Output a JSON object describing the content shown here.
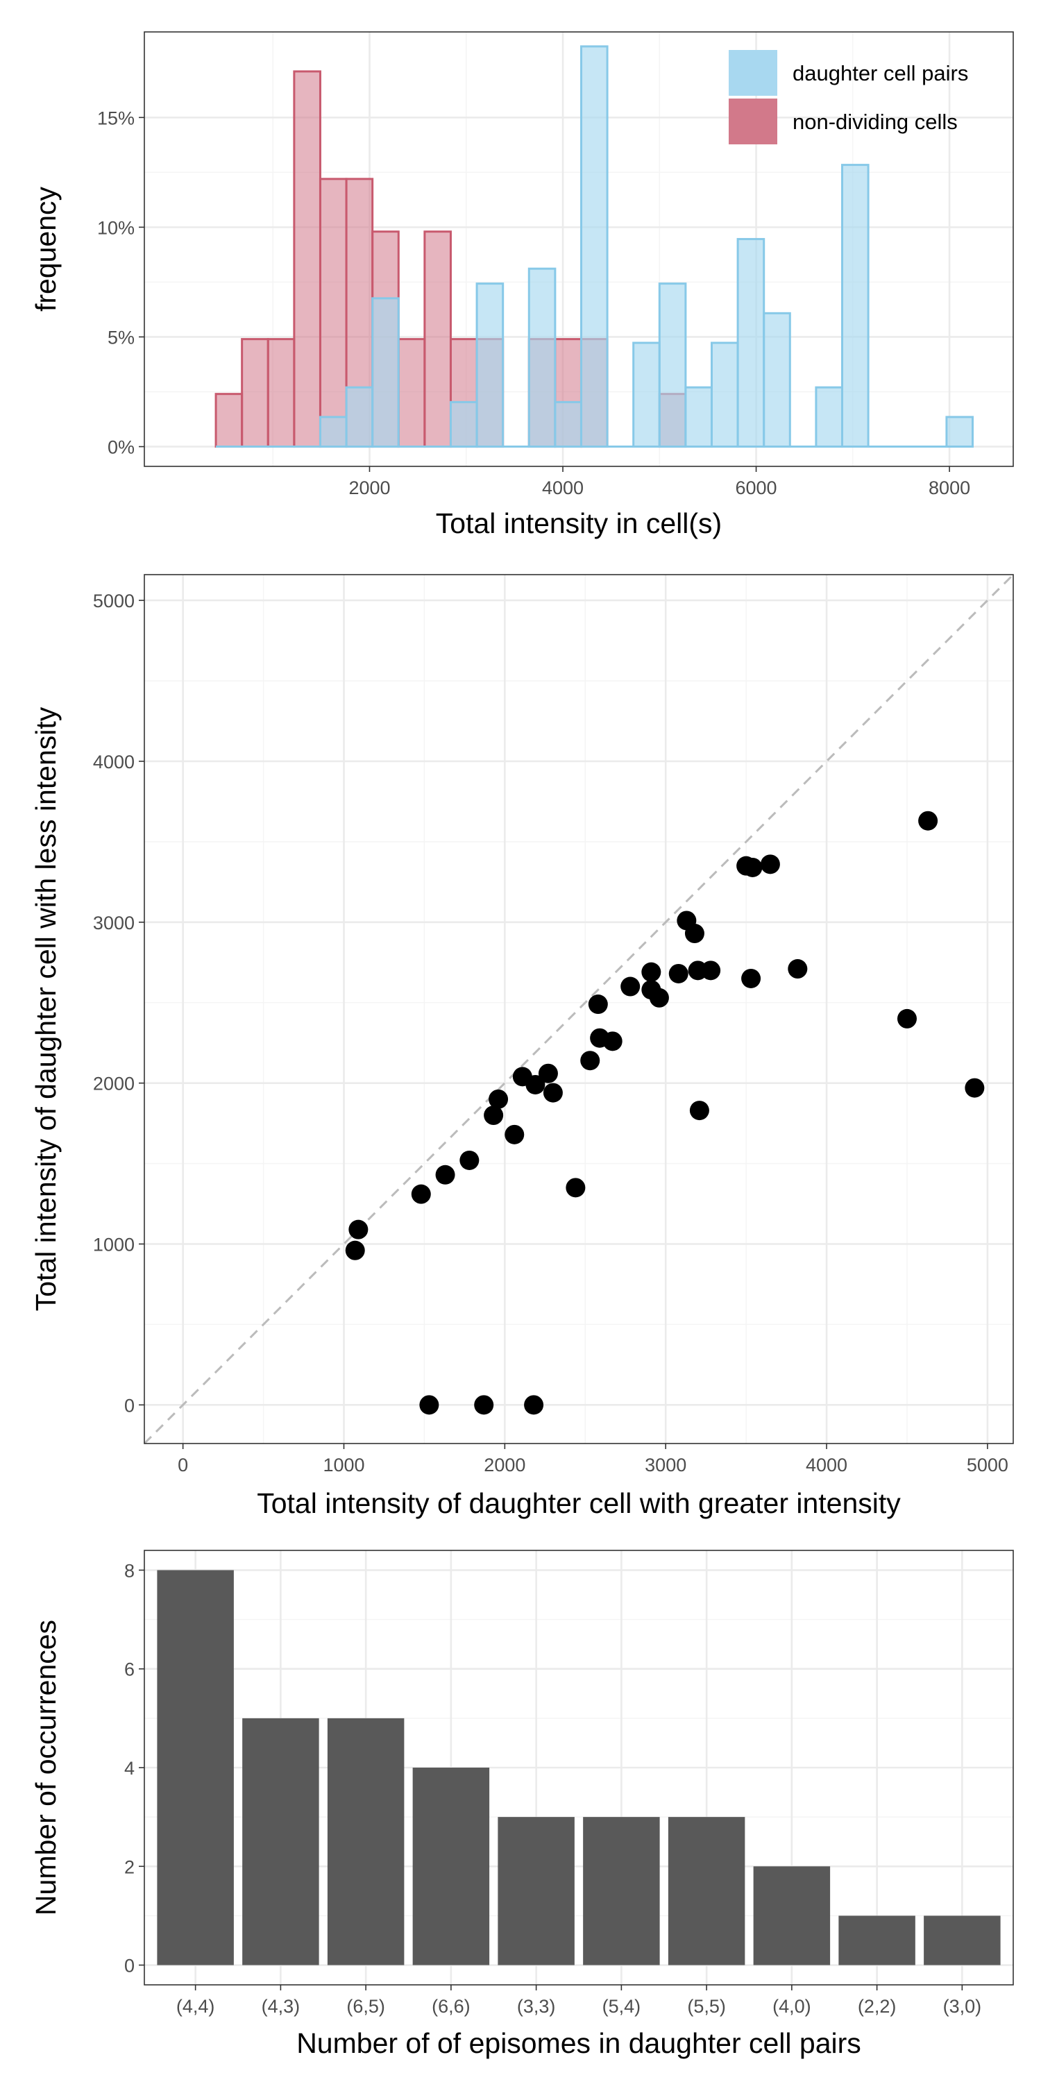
{
  "chart_data": [
    {
      "type": "histogram",
      "xlabel": "Total intensity in cell(s)",
      "ylabel": "frequency",
      "x_ticks": [
        2000,
        4000,
        6000,
        8000
      ],
      "x_tick_labels": [
        "2000",
        "4000",
        "6000",
        "8000"
      ],
      "y_ticks": [
        0,
        5,
        10,
        15
      ],
      "y_tick_labels": [
        "0%",
        "5%",
        "10%",
        "15%"
      ],
      "xlim": [
        -330,
        8660
      ],
      "ylim": [
        -0.9,
        18.9
      ],
      "bin_width": 270,
      "grid": true,
      "legend_position": "top-right",
      "series": [
        {
          "name": "non-dividing cells",
          "fill": "#d2798a",
          "stroke": "#c85a6e",
          "bin_centers": [
            545,
            815,
            1085,
            1355,
            1625,
            1895,
            2165,
            2435,
            2705,
            2975,
            3245,
            3515,
            3785,
            4055,
            4325,
            4595,
            4865,
            5135
          ],
          "values": [
            2.4,
            4.9,
            4.9,
            17.1,
            12.2,
            12.2,
            9.8,
            4.9,
            9.8,
            4.9,
            4.9,
            0,
            4.9,
            4.9,
            4.9,
            0,
            0,
            2.4
          ]
        },
        {
          "name": "daughter cell pairs",
          "fill": "#a8d8f0",
          "stroke": "#87c9e8",
          "bin_centers": [
            545,
            815,
            1085,
            1355,
            1625,
            1895,
            2165,
            2435,
            2705,
            2975,
            3245,
            3515,
            3785,
            4055,
            4325,
            4595,
            4865,
            5135,
            5405,
            5675,
            5945,
            6215,
            6485,
            6755,
            7025,
            7295,
            7565,
            7835,
            8105
          ],
          "values": [
            0,
            0,
            0,
            0,
            1.35,
            2.7,
            6.76,
            0,
            0,
            2.03,
            7.43,
            0,
            8.11,
            2.03,
            18.24,
            0,
            4.73,
            7.43,
            2.7,
            4.73,
            9.46,
            6.08,
            0,
            2.7,
            12.84,
            0,
            0,
            0,
            1.35
          ]
        }
      ]
    },
    {
      "type": "scatter",
      "xlabel": "Total intensity of daughter cell with greater intensity",
      "ylabel": "Total intensity of daughter cell with less intensity",
      "x_ticks": [
        0,
        1000,
        2000,
        3000,
        4000,
        5000
      ],
      "y_ticks": [
        0,
        1000,
        2000,
        3000,
        4000,
        5000
      ],
      "xlim": [
        -240,
        5160
      ],
      "ylim": [
        -240,
        5160
      ],
      "grid": true,
      "reference_line": "y = x (dashed)",
      "points": [
        [
          4630,
          3630
        ],
        [
          3500,
          3350
        ],
        [
          3540,
          3340
        ],
        [
          3650,
          3360
        ],
        [
          3130,
          3010
        ],
        [
          3180,
          2930
        ],
        [
          2910,
          2690
        ],
        [
          3080,
          2680
        ],
        [
          3200,
          2700
        ],
        [
          3280,
          2700
        ],
        [
          3820,
          2710
        ],
        [
          3530,
          2650
        ],
        [
          2780,
          2600
        ],
        [
          2910,
          2580
        ],
        [
          2960,
          2530
        ],
        [
          2580,
          2490
        ],
        [
          4500,
          2400
        ],
        [
          2590,
          2280
        ],
        [
          2670,
          2260
        ],
        [
          2530,
          2140
        ],
        [
          2110,
          2040
        ],
        [
          2270,
          2060
        ],
        [
          2190,
          1990
        ],
        [
          2300,
          1940
        ],
        [
          1960,
          1900
        ],
        [
          1930,
          1800
        ],
        [
          3210,
          1830
        ],
        [
          4920,
          1970
        ],
        [
          2060,
          1680
        ],
        [
          1780,
          1520
        ],
        [
          1630,
          1430
        ],
        [
          1480,
          1310
        ],
        [
          2440,
          1350
        ],
        [
          1090,
          1090
        ],
        [
          1070,
          960
        ],
        [
          1530,
          0
        ],
        [
          1870,
          0
        ],
        [
          2180,
          0
        ]
      ]
    },
    {
      "type": "bar",
      "xlabel": "Number of of episomes in daughter cell pairs",
      "ylabel": "Number of occurrences",
      "categories": [
        "(4,4)",
        "(4,3)",
        "(6,5)",
        "(6,6)",
        "(3,3)",
        "(5,4)",
        "(5,5)",
        "(4,0)",
        "(2,2)",
        "(3,0)"
      ],
      "values": [
        8,
        5,
        5,
        4,
        3,
        3,
        3,
        2,
        1,
        1
      ],
      "y_ticks": [
        0,
        2,
        4,
        6,
        8
      ],
      "ylim": [
        -0.4,
        8.4
      ],
      "bar_color": "#595959",
      "grid": true
    }
  ]
}
